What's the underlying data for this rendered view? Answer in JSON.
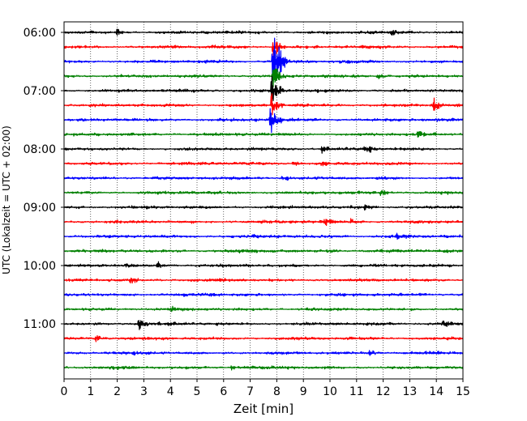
{
  "chart_data": {
    "type": "line",
    "title": "",
    "xlabel": "Zeit  [min]",
    "ylabel": "UTC (Lokalzeit = UTC + 02:00)",
    "xlim": [
      0,
      15
    ],
    "x_ticks": [
      "0",
      "1",
      "2",
      "3",
      "4",
      "5",
      "6",
      "7",
      "8",
      "9",
      "10",
      "11",
      "12",
      "13",
      "14",
      "15"
    ],
    "y_tick_labels": [
      "06:00",
      "07:00",
      "08:00",
      "09:00",
      "10:00",
      "11:00"
    ],
    "grid": {
      "x": true,
      "y": false,
      "style": "dotted"
    },
    "trace_interval_minutes": 15,
    "trace_colors": [
      "#000000",
      "#ff0000",
      "#0000ff",
      "#008000"
    ],
    "series": [
      {
        "start": "06:00",
        "color": "#000000",
        "events": [
          {
            "t": 2.0,
            "amp": 0.35
          },
          {
            "t": 12.3,
            "amp": 0.3
          }
        ]
      },
      {
        "start": "06:15",
        "color": "#ff0000",
        "events": [
          {
            "t": 7.85,
            "amp": 1.6
          }
        ]
      },
      {
        "start": "06:30",
        "color": "#0000ff",
        "events": [
          {
            "t": 7.85,
            "amp": 3.5
          },
          {
            "t": 8.1,
            "amp": 0.9
          }
        ]
      },
      {
        "start": "06:45",
        "color": "#008000",
        "events": [
          {
            "t": 7.85,
            "amp": 1.6
          },
          {
            "t": 11.8,
            "amp": 0.3
          }
        ]
      },
      {
        "start": "07:00",
        "color": "#000000",
        "events": [
          {
            "t": 7.8,
            "amp": 2.0
          }
        ]
      },
      {
        "start": "07:15",
        "color": "#ff0000",
        "events": [
          {
            "t": 7.8,
            "amp": 2.0
          },
          {
            "t": 13.9,
            "amp": 0.6
          }
        ]
      },
      {
        "start": "07:30",
        "color": "#0000ff",
        "events": [
          {
            "t": 7.75,
            "amp": 1.8
          }
        ]
      },
      {
        "start": "07:45",
        "color": "#008000",
        "events": [
          {
            "t": 13.3,
            "amp": 0.3
          }
        ]
      },
      {
        "start": "08:00",
        "color": "#000000",
        "events": [
          {
            "t": 11.3,
            "amp": 0.5
          },
          {
            "t": 9.7,
            "amp": 0.3
          }
        ]
      },
      {
        "start": "08:15",
        "color": "#ff0000",
        "events": [
          {
            "t": 8.6,
            "amp": 0.3
          },
          {
            "t": 9.7,
            "amp": 0.3
          }
        ]
      },
      {
        "start": "08:30",
        "color": "#0000ff",
        "events": [
          {
            "t": 8.2,
            "amp": 0.3
          }
        ]
      },
      {
        "start": "08:45",
        "color": "#008000",
        "events": [
          {
            "t": 11.9,
            "amp": 0.35
          }
        ]
      },
      {
        "start": "09:00",
        "color": "#000000",
        "events": [
          {
            "t": 11.3,
            "amp": 0.45
          }
        ]
      },
      {
        "start": "09:15",
        "color": "#ff0000",
        "events": [
          {
            "t": 10.8,
            "amp": 0.35
          },
          {
            "t": 9.8,
            "amp": 0.25
          }
        ]
      },
      {
        "start": "09:30",
        "color": "#0000ff",
        "events": [
          {
            "t": 12.5,
            "amp": 0.35
          }
        ]
      },
      {
        "start": "09:45",
        "color": "#008000",
        "events": [
          {
            "t": 9.9,
            "amp": 0.25
          }
        ]
      },
      {
        "start": "10:00",
        "color": "#000000",
        "events": [
          {
            "t": 2.3,
            "amp": 0.35
          },
          {
            "t": 3.5,
            "amp": 0.4
          }
        ]
      },
      {
        "start": "10:15",
        "color": "#ff0000",
        "events": [
          {
            "t": 2.5,
            "amp": 0.25
          }
        ]
      },
      {
        "start": "10:30",
        "color": "#0000ff",
        "events": [
          {
            "t": 5.5,
            "amp": 0.2
          }
        ]
      },
      {
        "start": "10:45",
        "color": "#008000",
        "events": [
          {
            "t": 4.0,
            "amp": 0.2
          }
        ]
      },
      {
        "start": "11:00",
        "color": "#000000",
        "events": [
          {
            "t": 2.8,
            "amp": 0.55
          },
          {
            "t": 14.2,
            "amp": 0.3
          }
        ]
      },
      {
        "start": "11:15",
        "color": "#ff0000",
        "events": [
          {
            "t": 1.2,
            "amp": 0.35
          }
        ]
      },
      {
        "start": "11:30",
        "color": "#0000ff",
        "events": [
          {
            "t": 11.5,
            "amp": 0.35
          }
        ]
      },
      {
        "start": "11:45",
        "color": "#008000",
        "events": [
          {
            "t": 6.3,
            "amp": 0.2
          }
        ]
      }
    ]
  }
}
